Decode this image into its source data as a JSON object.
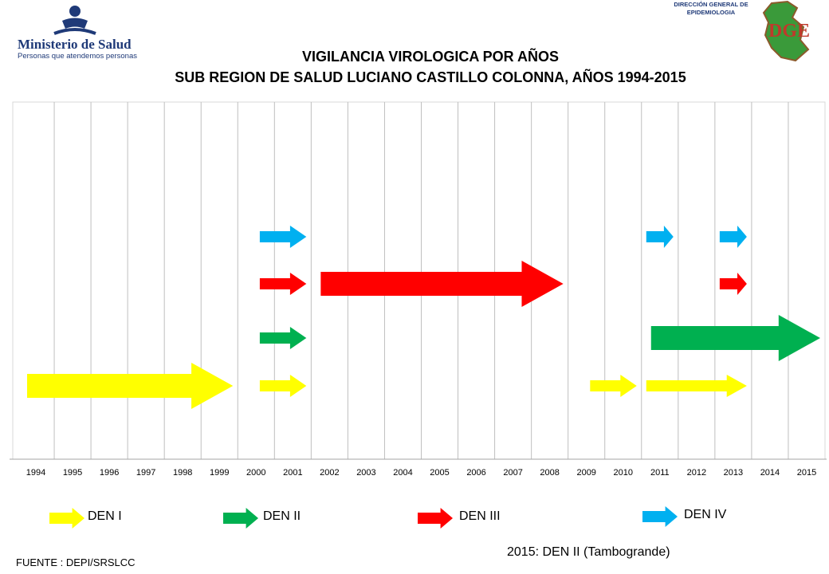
{
  "header": {
    "ministry": "Ministerio de Salud",
    "slogan": "Personas que atendemos personas",
    "dge_caption_1": "DIRECCIÓN GENERAL DE",
    "dge_caption_2": "EPIDEMIOLOGIA",
    "dge_logo_letters": "DGE"
  },
  "chart_data": {
    "type": "timeline",
    "title": "VIGILANCIA VIROLOGICA POR AÑOS",
    "subtitle": "SUB REGION DE SALUD LUCIANO CASTILLO COLONNA, AÑOS 1994-2015",
    "years": [
      "1994",
      "1995",
      "1996",
      "1997",
      "1998",
      "1999",
      "2000",
      "2001",
      "2002",
      "2003",
      "2004",
      "2005",
      "2006",
      "2007",
      "2008",
      "2009",
      "2010",
      "2011",
      "2012",
      "2013",
      "2014",
      "2015"
    ],
    "grid": true,
    "colors": {
      "DEN I": "#ffff00",
      "DEN II": "#00b050",
      "DEN III": "#ff0000",
      "DEN IV": "#00b0f0"
    },
    "series": [
      {
        "name": "DEN I",
        "periods": [
          [
            1994,
            1999
          ],
          [
            2000,
            2001
          ],
          [
            2009,
            2010
          ],
          [
            2011,
            2013
          ]
        ]
      },
      {
        "name": "DEN II",
        "periods": [
          [
            2000,
            2001
          ],
          [
            2011,
            2015
          ]
        ]
      },
      {
        "name": "DEN III",
        "periods": [
          [
            2000,
            2001
          ],
          [
            2002,
            2008
          ],
          [
            2013,
            2013
          ]
        ]
      },
      {
        "name": "DEN IV",
        "periods": [
          [
            2000,
            2001
          ],
          [
            2011,
            2011
          ],
          [
            2013,
            2013
          ]
        ]
      }
    ]
  },
  "legend": [
    "DEN I",
    "DEN II",
    "DEN III",
    "DEN IV"
  ],
  "note": "2015: DEN II (Tambogrande)",
  "source": "FUENTE : DEPI/SRSLCC"
}
